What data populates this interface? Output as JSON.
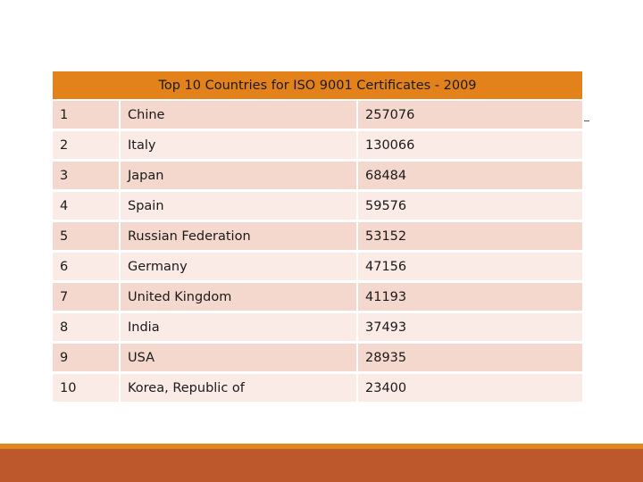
{
  "table": {
    "title": "Top 10 Countries for ISO 9001 Certificates - 2009",
    "rows": [
      {
        "rank": "1",
        "country": "Chine",
        "value": "257076"
      },
      {
        "rank": "2",
        "country": "Italy",
        "value": "130066"
      },
      {
        "rank": "3",
        "country": "Japan",
        "value": "68484"
      },
      {
        "rank": "4",
        "country": "Spain",
        "value": "59576"
      },
      {
        "rank": "5",
        "country": "Russian Federation",
        "value": "53152"
      },
      {
        "rank": "6",
        "country": "Germany",
        "value": "47156"
      },
      {
        "rank": "7",
        "country": "United Kingdom",
        "value": "41193"
      },
      {
        "rank": "8",
        "country": "India",
        "value": "37493"
      },
      {
        "rank": "9",
        "country": "USA",
        "value": "28935"
      },
      {
        "rank": "10",
        "country": "Korea, Republic of",
        "value": "23400"
      }
    ]
  },
  "colors": {
    "header": "#e3821b",
    "row_odd": "#f5d8cd",
    "row_even": "#faebe6",
    "footer_accent": "#e0861f",
    "footer_bar": "#bd582c"
  }
}
